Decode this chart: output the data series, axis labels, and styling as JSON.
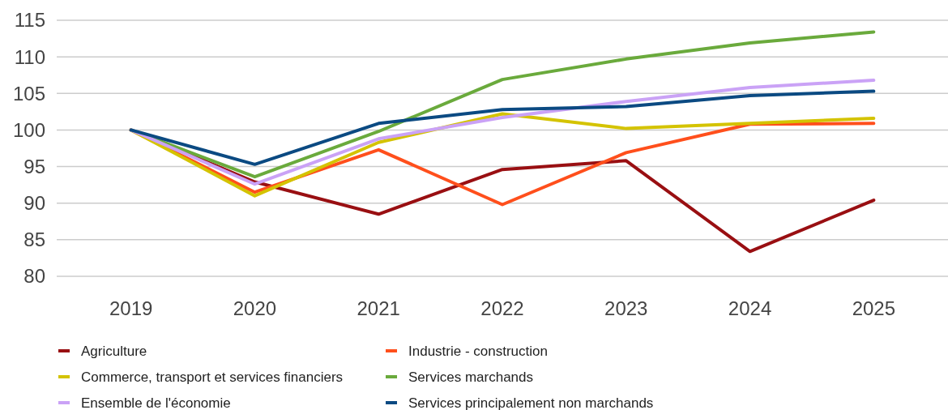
{
  "chart_data": {
    "type": "line",
    "categories": [
      "2019",
      "2020",
      "2021",
      "2022",
      "2023",
      "2024",
      "2025"
    ],
    "ylim": [
      80,
      115
    ],
    "yticks": [
      80,
      85,
      90,
      95,
      100,
      105,
      110,
      115
    ],
    "grid": "y",
    "legend": "bottom",
    "marker": "none",
    "line_style": "solid",
    "series": [
      {
        "name": "Agriculture",
        "color": "#990f12",
        "values": [
          100,
          92.9,
          88.5,
          94.6,
          95.8,
          83.4,
          90.4
        ]
      },
      {
        "name": "Industrie - construction",
        "color": "#ff4f1c",
        "values": [
          100,
          91.5,
          97.3,
          89.8,
          96.9,
          100.8,
          100.9
        ]
      },
      {
        "name": "Commerce, transport et services financiers",
        "color": "#d4c300",
        "values": [
          100,
          91.0,
          98.3,
          102.2,
          100.2,
          100.9,
          101.6
        ]
      },
      {
        "name": "Services marchands",
        "color": "#6aaa3c",
        "values": [
          100,
          93.6,
          99.8,
          106.9,
          109.7,
          111.9,
          113.4
        ]
      },
      {
        "name": "Ensemble de l'économie",
        "color": "#caa2f6",
        "values": [
          100,
          92.6,
          98.8,
          101.7,
          103.9,
          105.8,
          106.8
        ]
      },
      {
        "name": "Services principalement non marchands",
        "color": "#0b4a82",
        "values": [
          100,
          95.3,
          100.9,
          102.8,
          103.2,
          104.7,
          105.3
        ]
      }
    ]
  }
}
